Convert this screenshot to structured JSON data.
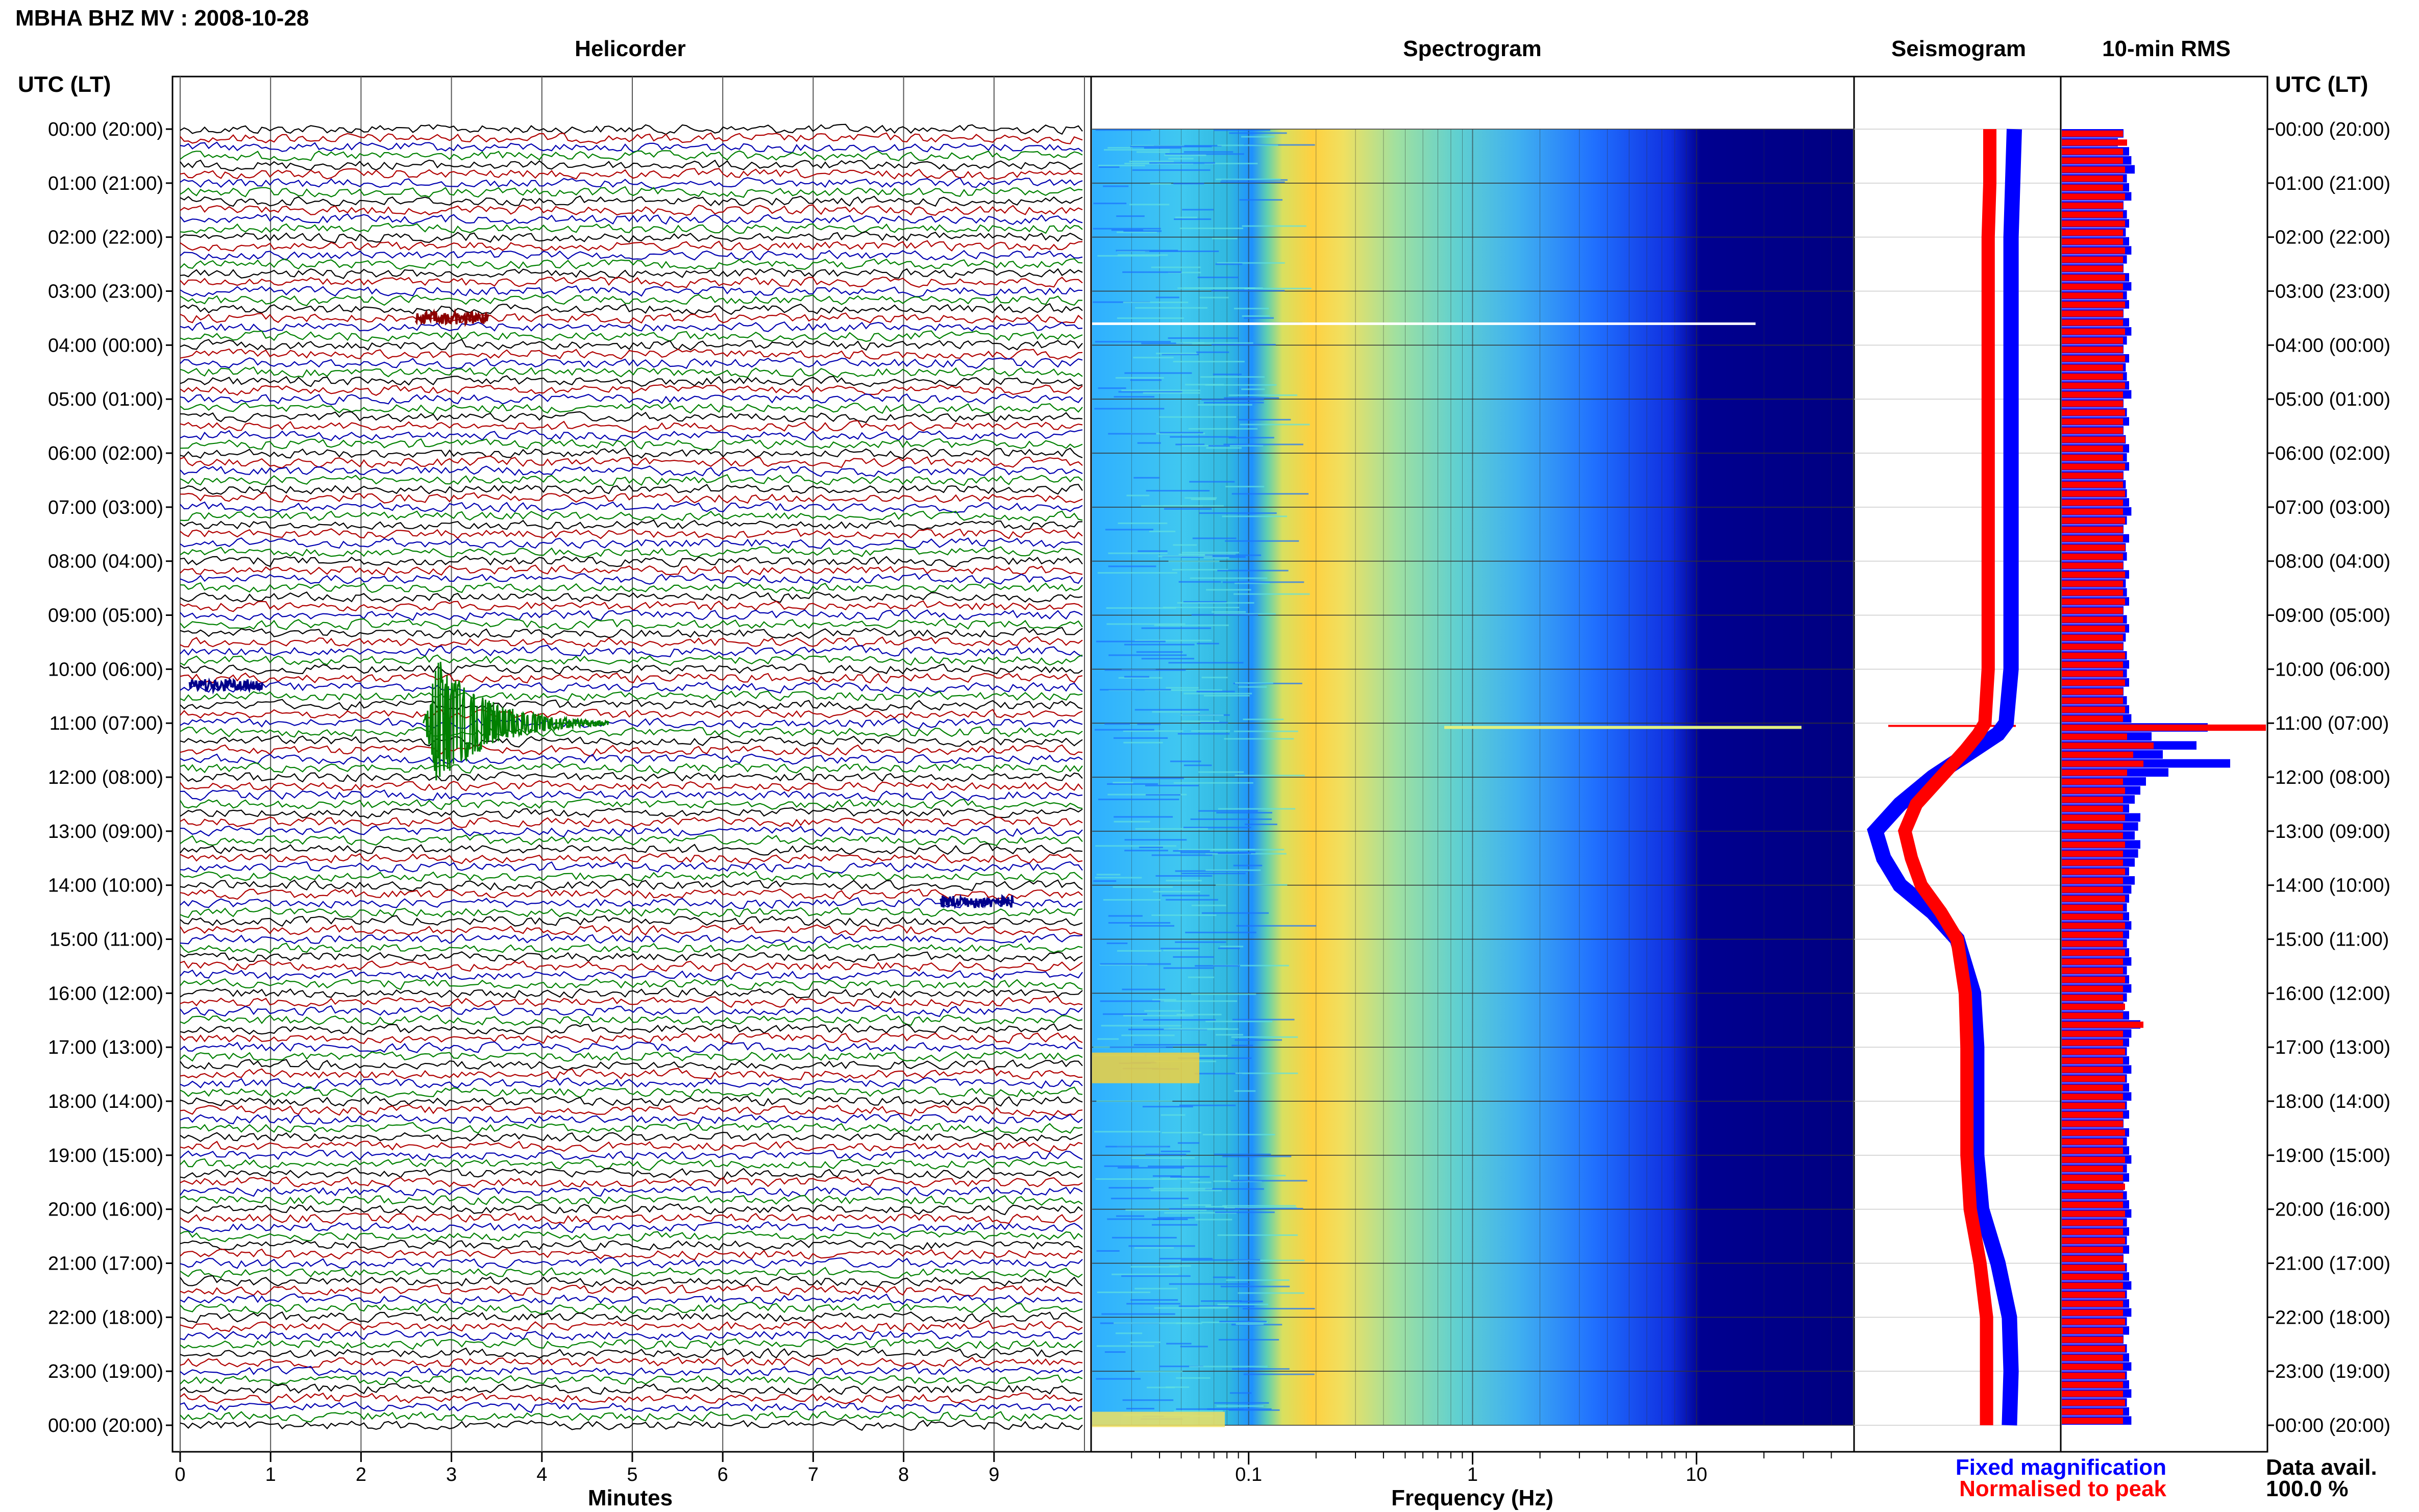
{
  "header": {
    "station_title": "MBHA BHZ MV : 2008-10-28",
    "utc_lt_left": "UTC (LT)",
    "utc_lt_right": "UTC (LT)"
  },
  "panels": {
    "helicorder": "Helicorder",
    "spectrogram": "Spectrogram",
    "seismogram": "Seismogram",
    "rms": "10-min RMS"
  },
  "axes": {
    "minutes_label": "Minutes",
    "frequency_label": "Frequency (Hz)",
    "minute_ticks": [
      "0",
      "1",
      "2",
      "3",
      "4",
      "5",
      "6",
      "7",
      "8",
      "9"
    ],
    "freq_ticks": [
      "0.1",
      "1",
      "10"
    ]
  },
  "legend": {
    "fixed": "Fixed magnification",
    "normalised": "Normalised to peak",
    "fixed_color": "#0000ff",
    "normalised_color": "#ff0000"
  },
  "data_avail": {
    "label": "Data avail.",
    "value": "100.0 %"
  },
  "hour_labels": [
    "00:00 (20:00)",
    "01:00 (21:00)",
    "02:00 (22:00)",
    "03:00 (23:00)",
    "04:00 (00:00)",
    "05:00 (01:00)",
    "06:00 (02:00)",
    "07:00 (03:00)",
    "08:00 (04:00)",
    "09:00 (05:00)",
    "10:00 (06:00)",
    "11:00 (07:00)",
    "12:00 (08:00)",
    "13:00 (09:00)",
    "14:00 (10:00)",
    "15:00 (11:00)",
    "16:00 (12:00)",
    "17:00 (13:00)",
    "18:00 (14:00)",
    "19:00 (15:00)",
    "20:00 (16:00)",
    "21:00 (17:00)",
    "22:00 (18:00)",
    "23:00 (19:00)",
    "00:00 (20:00)"
  ],
  "trace_colors": [
    "#000000",
    "#b00000",
    "#0000b0",
    "#008000"
  ],
  "chart_data": {
    "type": "heatmap",
    "title": "MBHA BHZ MV : 2008-10-28",
    "helicorder": {
      "xlabel": "Minutes",
      "xlim": [
        0,
        10
      ],
      "traces_per_hour": 6,
      "events": [
        {
          "hour": 3.5,
          "minute": 3.0,
          "color": "#8b0000",
          "scale": "small"
        },
        {
          "hour": 10.3,
          "minute": 0.5,
          "color": "#00008b",
          "scale": "small"
        },
        {
          "hour": 11.0,
          "minute": 3.0,
          "color": "#008000",
          "scale": "large"
        },
        {
          "hour": 14.3,
          "minute": 8.8,
          "color": "#00008b",
          "scale": "small"
        }
      ]
    },
    "spectrogram": {
      "xlabel": "Frequency (Hz)",
      "xscale": "log",
      "xlim": [
        0.02,
        50
      ],
      "peak_frequency_hz": 0.25
    },
    "seismogram": {
      "hours": [
        0,
        1,
        2,
        3,
        4,
        5,
        6,
        7,
        8,
        9,
        10,
        11,
        11.2,
        11.5,
        12,
        12.5,
        13,
        13.5,
        14,
        14.5,
        15,
        16,
        17,
        18,
        19,
        20,
        21,
        22,
        23,
        24
      ],
      "fixed_magnification": [
        0.35,
        0.34,
        0.33,
        0.33,
        0.33,
        0.33,
        0.33,
        0.33,
        0.33,
        0.33,
        0.33,
        0.3,
        0.25,
        0.1,
        -0.15,
        -0.35,
        -0.5,
        -0.45,
        -0.35,
        -0.15,
        0.0,
        0.1,
        0.12,
        0.12,
        0.12,
        0.15,
        0.25,
        0.32,
        0.33,
        0.32
      ],
      "normalised_to_peak": [
        0.2,
        0.2,
        0.19,
        0.19,
        0.19,
        0.19,
        0.19,
        0.19,
        0.19,
        0.19,
        0.19,
        0.17,
        0.13,
        0.05,
        -0.1,
        -0.25,
        -0.32,
        -0.28,
        -0.22,
        -0.1,
        0.0,
        0.05,
        0.06,
        0.06,
        0.06,
        0.08,
        0.14,
        0.18,
        0.18,
        0.18
      ]
    },
    "rms_10min": {
      "note_from_image": "red = normalised to peak, blue = fixed magnification",
      "fixed_magnification": [
        0.55,
        0.5,
        0.6,
        0.62,
        0.65,
        0.58,
        0.6,
        0.62,
        0.55,
        0.58,
        0.6,
        0.57,
        0.6,
        0.62,
        0.58,
        0.55,
        0.6,
        0.62,
        0.58,
        0.6,
        0.55,
        0.6,
        0.62,
        0.58,
        0.55,
        0.6,
        0.57,
        0.58,
        0.6,
        0.62,
        0.55,
        0.58,
        0.6,
        0.55,
        0.57,
        0.6,
        0.58,
        0.6,
        0.55,
        0.57,
        0.58,
        0.6,
        0.62,
        0.58,
        0.55,
        0.6,
        0.57,
        0.58,
        0.55,
        0.6,
        0.57,
        0.58,
        0.6,
        0.55,
        0.58,
        0.6,
        0.57,
        0.55,
        0.58,
        0.6,
        0.58,
        0.6,
        0.55,
        0.58,
        0.6,
        0.62,
        1.3,
        0.8,
        1.2,
        0.9,
        1.5,
        0.95,
        0.75,
        0.7,
        0.65,
        0.6,
        0.7,
        0.68,
        0.65,
        0.7,
        0.68,
        0.65,
        0.6,
        0.65,
        0.62,
        0.6,
        0.58,
        0.6,
        0.62,
        0.6,
        0.58,
        0.6,
        0.62,
        0.58,
        0.6,
        0.62,
        0.58,
        0.55,
        0.6,
        0.7,
        0.62,
        0.6,
        0.58,
        0.6,
        0.62,
        0.58,
        0.6,
        0.62,
        0.58,
        0.6,
        0.55,
        0.6,
        0.58,
        0.6,
        0.62,
        0.58,
        0.6,
        0.55,
        0.58,
        0.6,
        0.62,
        0.58,
        0.6,
        0.58,
        0.6,
        0.55,
        0.58,
        0.6,
        0.62,
        0.58,
        0.6,
        0.62,
        0.58,
        0.6,
        0.55,
        0.58,
        0.6,
        0.62,
        0.58,
        0.6,
        0.62,
        0.58,
        0.6,
        0.62
      ],
      "normalised_to_peak": [
        0.3,
        0.32,
        0.3,
        0.3,
        0.31,
        0.3,
        0.3,
        0.31,
        0.3,
        0.3,
        0.31,
        0.3,
        0.3,
        0.31,
        0.3,
        0.3,
        0.31,
        0.3,
        0.3,
        0.31,
        0.3,
        0.3,
        0.31,
        0.3,
        0.3,
        0.31,
        0.3,
        0.3,
        0.31,
        0.3,
        0.3,
        0.31,
        0.3,
        0.3,
        0.31,
        0.3,
        0.3,
        0.31,
        0.3,
        0.3,
        0.31,
        0.3,
        0.3,
        0.31,
        0.3,
        0.3,
        0.31,
        0.3,
        0.3,
        0.31,
        0.3,
        0.3,
        0.31,
        0.3,
        0.3,
        0.31,
        0.3,
        0.3,
        0.31,
        0.3,
        0.3,
        0.31,
        0.3,
        0.3,
        0.31,
        0.3,
        1.0,
        0.32,
        0.45,
        0.35,
        0.4,
        0.32,
        0.3,
        0.31,
        0.3,
        0.3,
        0.31,
        0.3,
        0.3,
        0.31,
        0.3,
        0.3,
        0.31,
        0.3,
        0.3,
        0.31,
        0.3,
        0.3,
        0.31,
        0.3,
        0.3,
        0.31,
        0.3,
        0.3,
        0.31,
        0.3,
        0.3,
        0.31,
        0.3,
        0.4,
        0.3,
        0.3,
        0.31,
        0.3,
        0.3,
        0.31,
        0.3,
        0.3,
        0.31,
        0.3,
        0.3,
        0.31,
        0.3,
        0.3,
        0.31,
        0.3,
        0.3,
        0.31,
        0.3,
        0.3,
        0.31,
        0.3,
        0.3,
        0.31,
        0.3,
        0.3,
        0.31,
        0.3,
        0.3,
        0.31,
        0.3,
        0.3,
        0.31,
        0.3,
        0.3,
        0.31,
        0.3,
        0.3,
        0.31,
        0.3,
        0.3,
        0.31,
        0.3,
        0.3
      ]
    }
  }
}
